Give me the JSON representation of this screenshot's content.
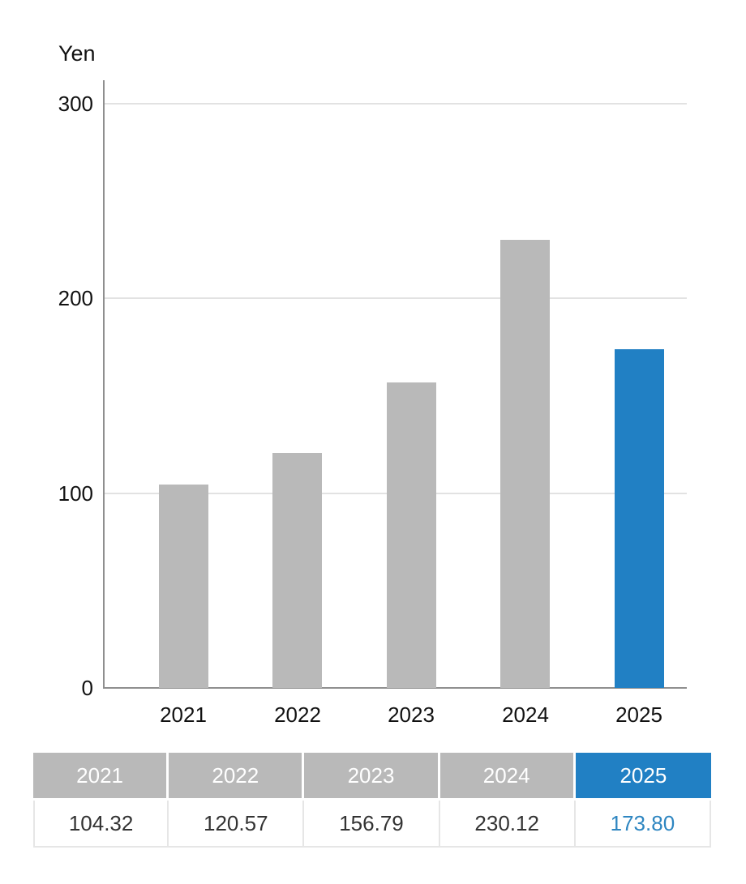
{
  "chart_data": {
    "type": "bar",
    "title": "Yen",
    "ylabel": "Yen",
    "xlabel": "",
    "categories": [
      "2021",
      "2022",
      "2023",
      "2024",
      "2025"
    ],
    "values": [
      104.32,
      120.57,
      156.79,
      230.12,
      173.8
    ],
    "ylim": [
      0,
      300
    ],
    "yticks": [
      0,
      100,
      200,
      300
    ],
    "grid": true,
    "legend": false,
    "highlight_index": 4
  },
  "table": {
    "headers": [
      "2021",
      "2022",
      "2023",
      "2024",
      "2025"
    ],
    "values": [
      "104.32",
      "120.57",
      "156.79",
      "230.12",
      "173.80"
    ],
    "highlight_index": 4
  },
  "colors": {
    "bar_default": "#b9b9b9",
    "bar_highlight": "#2180c4",
    "header_default_bg": "#b9b9b9",
    "header_highlight_bg": "#2180c4",
    "value_text": "#333333",
    "value_highlight_text": "#2e86c1",
    "gridline": "#e2e2e2",
    "axis": "#8f8f8f",
    "tick_text": "#111111"
  }
}
